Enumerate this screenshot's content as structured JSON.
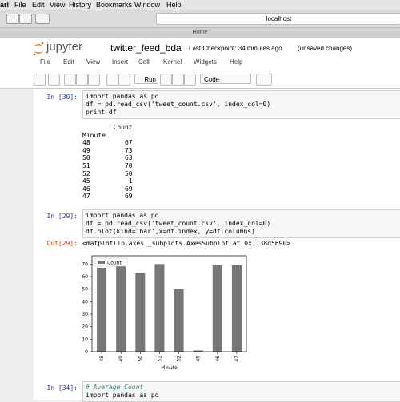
{
  "browser": {
    "menubar": [
      "ari",
      "File",
      "Edit",
      "View",
      "History",
      "Bookmarks",
      "Window",
      "Help"
    ],
    "address": "localhost",
    "tab": "Home"
  },
  "notebook": {
    "logo": "jupyter",
    "name": "twitter_feed_bda",
    "checkpoint": "Last Checkpoint: 34 minutes ago",
    "status": "(unsaved changes)",
    "menu": [
      "File",
      "Edit",
      "View",
      "Insert",
      "Cell",
      "Kernel",
      "Widgets",
      "Help"
    ],
    "toolbar": {
      "run": "Run",
      "cell_type": "Code"
    }
  },
  "cells": [
    {
      "prompt": "In [30]:",
      "code": [
        "import pandas as pd",
        "df = pd.read_csv('tweet_count.csv', index_col=0)",
        "print df"
      ],
      "output": [
        "        Count",
        "Minute",
        "48         67",
        "49         73",
        "50         63",
        "51         70",
        "52         50",
        "45          1",
        "46         69",
        "47         69"
      ]
    },
    {
      "prompt": "In [29]:",
      "code": [
        "import pandas as pd",
        "df = pd.read_csv('tweet_count.csv', index_col=0)",
        "df.plot(kind='bar',x=df.index, y=df.columns)"
      ],
      "out_prompt": "Out[29]:",
      "output": [
        "<matplotlib.axes._subplots.AxesSubplot at 0x1138d5690>"
      ]
    },
    {
      "prompt": "In [34]:",
      "code": [
        "# Average Count",
        "import pandas as pd"
      ]
    }
  ],
  "chart_data": {
    "type": "bar",
    "categories": [
      "48",
      "49",
      "50",
      "51",
      "52",
      "45",
      "46",
      "47"
    ],
    "series": [
      {
        "name": "Count",
        "color": "#777777",
        "values": [
          67,
          73,
          63,
          70,
          50,
          1,
          69,
          69
        ]
      }
    ],
    "xlabel": "Minute",
    "ylim": [
      0,
      76.6
    ],
    "yticks": [
      0,
      10,
      20,
      30,
      40,
      50,
      60,
      70
    ],
    "legend": "upper left"
  }
}
